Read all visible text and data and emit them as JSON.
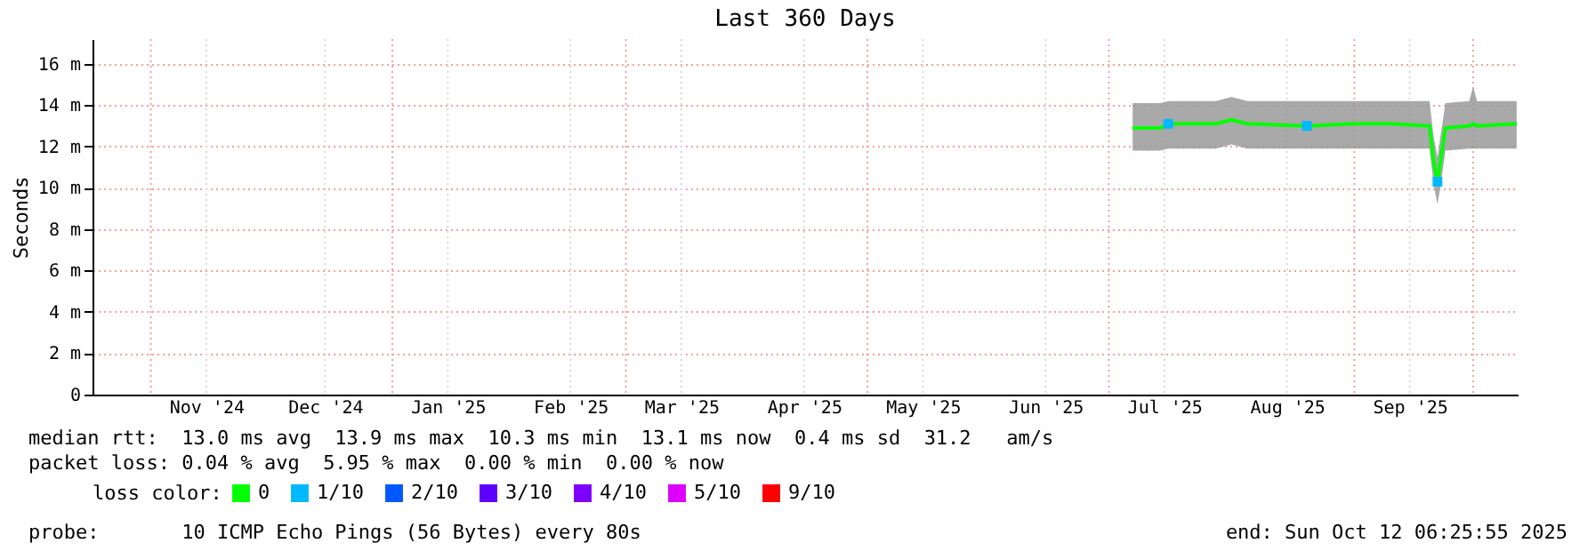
{
  "chart_data": {
    "type": "line",
    "title": "Last 360 Days",
    "ylabel": "Seconds",
    "legend_title": "loss color:",
    "xlim": [
      "2024-10-17T06:25",
      "2025-10-12T06:25"
    ],
    "xticks": [
      {
        "value": "2024-11-01",
        "label": null
      },
      {
        "value": "2024-11-15",
        "label": "Nov '24"
      },
      {
        "value": "2024-12-15",
        "label": "Dec '24"
      },
      {
        "value": "2025-01-01",
        "label": null
      },
      {
        "value": "2025-01-15",
        "label": "Jan '25"
      },
      {
        "value": "2025-02-15",
        "label": "Feb '25"
      },
      {
        "value": "2025-03-01",
        "label": null
      },
      {
        "value": "2025-03-15",
        "label": "Mar '25"
      },
      {
        "value": "2025-04-15",
        "label": "Apr '25"
      },
      {
        "value": "2025-05-01",
        "label": null
      },
      {
        "value": "2025-05-15",
        "label": "May '25"
      },
      {
        "value": "2025-06-15",
        "label": "Jun '25"
      },
      {
        "value": "2025-07-01",
        "label": null
      },
      {
        "value": "2025-07-15",
        "label": "Jul '25"
      },
      {
        "value": "2025-08-15",
        "label": "Aug '25"
      },
      {
        "value": "2025-09-01",
        "label": null
      },
      {
        "value": "2025-09-15",
        "label": "Sep '25"
      },
      {
        "value": "2025-10-01",
        "label": null
      }
    ],
    "ylim": [
      0,
      17.2
    ],
    "yticks": [
      0,
      {
        "value": 2,
        "label": "2 m"
      },
      {
        "value": 4,
        "label": "4 m"
      },
      {
        "value": 6,
        "label": "6 m"
      },
      {
        "value": 8,
        "label": "8 m"
      },
      {
        "value": 10,
        "label": "10 m"
      },
      {
        "value": 12,
        "label": "12 m"
      },
      {
        "value": 14,
        "label": "14 m"
      },
      {
        "value": 16,
        "label": "16 m"
      }
    ],
    "grid": true,
    "legend": "bottom",
    "series": [
      {
        "name": "0",
        "color": "#00ff00",
        "x": [
          "2025-07-07",
          "2025-07-14",
          "2025-07-16",
          "2025-07-28",
          "2025-08-01",
          "2025-08-05",
          "2025-08-20",
          "2025-09-01",
          "2025-09-10",
          "2025-09-20",
          "2025-09-21",
          "2025-09-22",
          "2025-09-23",
          "2025-09-24",
          "2025-09-30",
          "2025-10-01",
          "2025-10-02",
          "2025-10-12"
        ],
        "values": [
          12.9,
          12.9,
          13.1,
          13.1,
          13.3,
          13.1,
          13.0,
          13.1,
          13.1,
          13.0,
          11.3,
          10.3,
          11.6,
          12.9,
          13.0,
          13.1,
          13.0,
          13.1
        ],
        "lower": [
          11.8,
          11.8,
          11.9,
          11.9,
          12.1,
          11.9,
          11.9,
          11.9,
          11.9,
          11.9,
          10.2,
          9.2,
          10.4,
          11.8,
          11.9,
          11.9,
          11.9,
          11.9
        ],
        "upper": [
          14.1,
          14.1,
          14.2,
          14.2,
          14.4,
          14.2,
          14.2,
          14.2,
          14.2,
          14.2,
          12.5,
          11.5,
          12.8,
          14.1,
          14.2,
          14.9,
          14.2,
          14.2
        ]
      },
      {
        "name": "1/10",
        "color": "#00b8ff",
        "type": "scatter",
        "marker": "square",
        "x": [
          "2025-07-16",
          "2025-08-20",
          "2025-09-22"
        ],
        "values": [
          13.1,
          13.0,
          10.3
        ]
      },
      {
        "name": "2/10",
        "color": "#0059ff",
        "type": "scatter",
        "marker": "square"
      },
      {
        "name": "3/10",
        "color": "#5e00ff",
        "type": "scatter",
        "marker": "square"
      },
      {
        "name": "4/10",
        "color": "#7e00ff",
        "type": "scatter",
        "marker": "square"
      },
      {
        "name": "5/10",
        "color": "#dd00ff",
        "type": "scatter",
        "marker": "square"
      },
      {
        "name": "9/10",
        "color": "#ff0000",
        "type": "scatter",
        "marker": "square"
      }
    ],
    "annotations": [
      "median rtt:  13.0 ms avg  13.9 ms max  10.3 ms min  13.1 ms now  0.4 ms sd  31.2   am/s",
      "packet loss: 0.04 % avg  5.95 % max  0.00 % min  0.00 % now",
      "probe:       10 ICMP Echo Pings (56 Bytes) every 80s",
      "end: Sun Oct 12 06:25:55 2025"
    ]
  }
}
